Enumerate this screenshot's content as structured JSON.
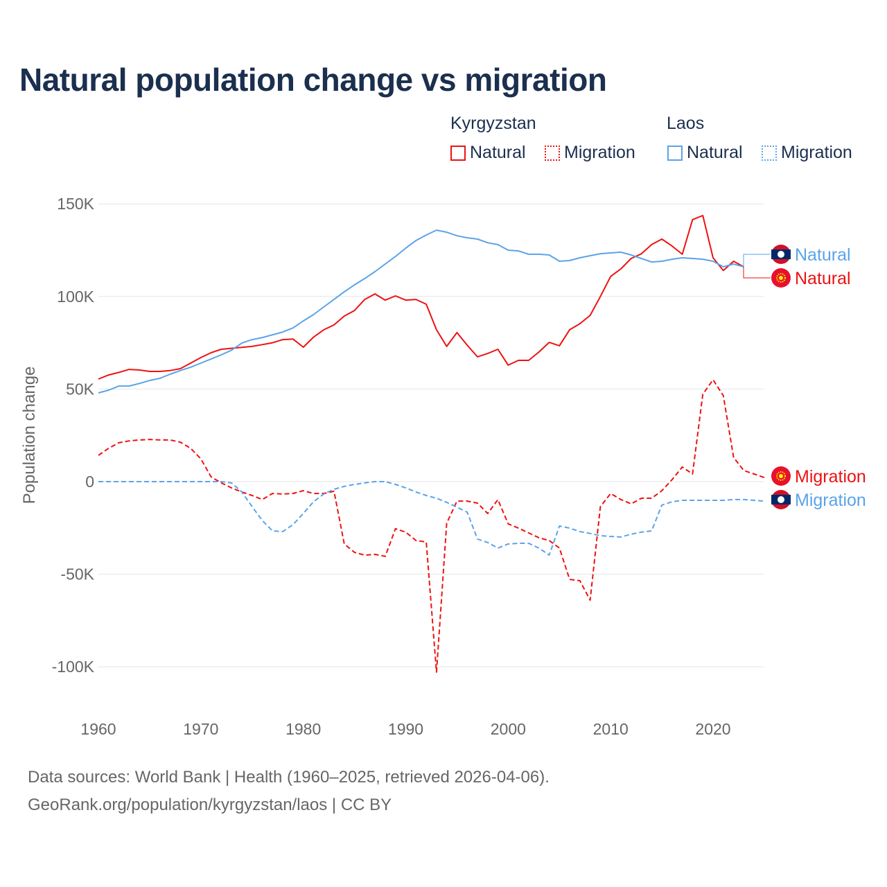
{
  "chart_data": {
    "type": "line",
    "title": "Natural population change vs migration",
    "xlabel": "",
    "ylabel": "Population change",
    "xlim": [
      1960,
      2025
    ],
    "ylim": [
      -115000,
      160000
    ],
    "x_ticks": [
      1960,
      1970,
      1980,
      1990,
      2000,
      2010,
      2020
    ],
    "x_tick_labels": [
      "1960",
      "1970",
      "1980",
      "1990",
      "2000",
      "2010",
      "2020"
    ],
    "y_ticks": [
      150000,
      100000,
      50000,
      0,
      -50000,
      -100000
    ],
    "y_tick_labels": [
      "150K",
      "100K",
      "50K",
      "0",
      "-50K",
      "-100K"
    ],
    "grid": true,
    "legend": {
      "placement": "top-right",
      "groups": [
        {
          "name": "Kyrgyzstan",
          "items": [
            "Natural",
            "Migration"
          ]
        },
        {
          "name": "Laos",
          "items": [
            "Natural",
            "Migration"
          ]
        }
      ]
    },
    "series": [
      {
        "country": "Kyrgyzstan",
        "name": "Natural",
        "color": "#ee1111",
        "style": "solid",
        "start": 1960,
        "values": [
          55400,
          57600,
          59000,
          60600,
          60300,
          59500,
          59500,
          60000,
          61000,
          64000,
          67000,
          69600,
          71500,
          72000,
          72500,
          73000,
          74000,
          75000,
          76700,
          77000,
          72600,
          78000,
          82000,
          84600,
          89400,
          92400,
          98400,
          101400,
          98000,
          100300,
          98000,
          98400,
          95800,
          82000,
          73000,
          80500,
          73700,
          67400,
          69200,
          71500,
          62900,
          65500,
          65500,
          70000,
          75200,
          73400,
          82000,
          85300,
          89800,
          100000,
          110800,
          114900,
          120500,
          123000,
          128000,
          131000,
          127200,
          122800,
          141500,
          143700,
          120900,
          114000,
          119000,
          116000
        ]
      },
      {
        "country": "Laos",
        "name": "Natural",
        "color": "#5ba3e8",
        "style": "solid",
        "start": 1960,
        "values": [
          47900,
          49400,
          51600,
          51600,
          53000,
          54600,
          55800,
          58000,
          60000,
          61800,
          64000,
          66200,
          68500,
          71000,
          74800,
          76700,
          77800,
          79300,
          80800,
          83000,
          86800,
          90200,
          94300,
          98400,
          102500,
          106300,
          109700,
          113400,
          117500,
          121600,
          126100,
          130200,
          133200,
          135800,
          134700,
          132800,
          131700,
          131000,
          129000,
          128000,
          125000,
          124600,
          122800,
          122800,
          122400,
          119000,
          119400,
          120900,
          122000,
          123100,
          123500,
          123900,
          122400,
          120500,
          118600,
          119000,
          120100,
          120900,
          120500,
          120100,
          119000,
          116000,
          117500,
          116000
        ]
      },
      {
        "country": "Kyrgyzstan",
        "name": "Migration",
        "color": "#ee1111",
        "style": "dashed",
        "start": 1960,
        "values": [
          14200,
          18000,
          21000,
          22000,
          22500,
          22800,
          22500,
          22500,
          21300,
          18000,
          12300,
          2600,
          -700,
          -3400,
          -5600,
          -7500,
          -9700,
          -6400,
          -6700,
          -6400,
          -4900,
          -6400,
          -6400,
          -5200,
          -33700,
          -38200,
          -39700,
          -39300,
          -40400,
          -25400,
          -27300,
          -31800,
          -32600,
          -102900,
          -22500,
          -10500,
          -10500,
          -11600,
          -17200,
          -9700,
          -22800,
          -25100,
          -27700,
          -30300,
          -31800,
          -35900,
          -52800,
          -53500,
          -64000,
          -13500,
          -6400,
          -9700,
          -12000,
          -9000,
          -9000,
          -4900,
          1100,
          7900,
          4100,
          47200,
          55000,
          46400,
          13100,
          6000,
          4100,
          2200
        ]
      },
      {
        "country": "Laos",
        "name": "Migration",
        "color": "#5ba3e8",
        "style": "dashed",
        "start": 1960,
        "values": [
          0,
          0,
          0,
          0,
          0,
          0,
          0,
          0,
          0,
          0,
          0,
          0,
          0,
          -700,
          -5600,
          -13500,
          -21000,
          -26600,
          -27000,
          -23200,
          -17200,
          -10900,
          -6700,
          -4100,
          -2600,
          -1500,
          -700,
          0,
          0,
          -1500,
          -3400,
          -5600,
          -7500,
          -9000,
          -11200,
          -13800,
          -16500,
          -31000,
          -32900,
          -35900,
          -33700,
          -33300,
          -33300,
          -35900,
          -39700,
          -24000,
          -25100,
          -27000,
          -28000,
          -29200,
          -29600,
          -29900,
          -28400,
          -27300,
          -26600,
          -12700,
          -10900,
          -10100,
          -10100,
          -10100,
          -10100,
          -10100,
          -9700,
          -9700,
          -10100,
          -10500
        ]
      }
    ],
    "end_labels": [
      "Natural",
      "Natural",
      "Migration",
      "Migration"
    ]
  },
  "footer": {
    "line1": "Data sources: World Bank | Health (1960–2025, retrieved 2026-04-06).",
    "line2": "GeoRank.org/population/kyrgyzstan/laos | CC BY"
  }
}
